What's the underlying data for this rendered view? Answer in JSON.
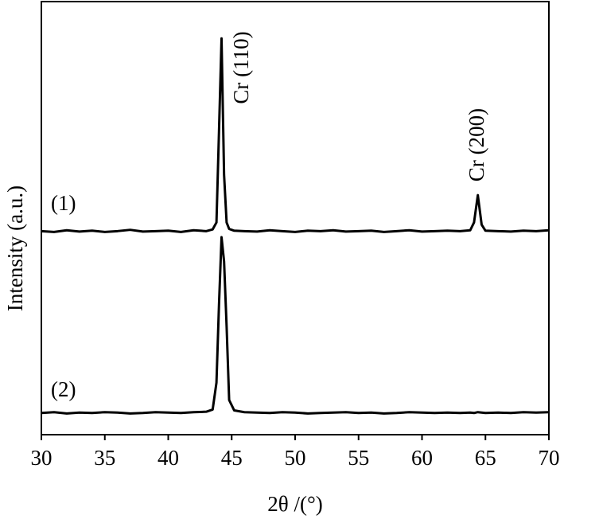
{
  "chart_data": {
    "type": "line",
    "xlabel": "2θ /(°)",
    "ylabel": "Intensity (a.u.)",
    "annotations": [
      "Cr (110)",
      "Cr (200)"
    ],
    "x": [
      30,
      31,
      32,
      33,
      34,
      35,
      36,
      37,
      38,
      39,
      40,
      41,
      42,
      43,
      43.5,
      43.8,
      44.0,
      44.2,
      44.4,
      44.6,
      44.8,
      45.2,
      46,
      47,
      48,
      49,
      50,
      51,
      52,
      53,
      54,
      55,
      56,
      57,
      58,
      59,
      60,
      61,
      62,
      63,
      63.8,
      64.1,
      64.4,
      64.7,
      65,
      66,
      67,
      68,
      69,
      70
    ],
    "series": [
      {
        "name": "(1)",
        "color": "#000000",
        "values": [
          47.0,
          46.8,
          47.2,
          46.9,
          47.1,
          46.8,
          47.0,
          47.3,
          46.9,
          47.0,
          47.1,
          46.8,
          47.2,
          47.0,
          47.4,
          49,
          70,
          91.5,
          60,
          49,
          47.5,
          47.1,
          47.0,
          46.9,
          47.2,
          47.0,
          46.8,
          47.1,
          47.0,
          47.2,
          46.9,
          47.0,
          47.1,
          46.8,
          47.0,
          47.2,
          46.9,
          47.0,
          47.1,
          47.0,
          47.2,
          49,
          55.3,
          48.5,
          47.1,
          47.0,
          46.9,
          47.1,
          47.0,
          47.2
        ]
      },
      {
        "name": "(2)",
        "color": "#000000",
        "values": [
          5.0,
          5.2,
          4.9,
          5.1,
          5.0,
          5.2,
          5.1,
          4.9,
          5.0,
          5.2,
          5.1,
          5.0,
          5.2,
          5.3,
          5.8,
          12,
          30,
          45.6,
          40,
          25,
          8,
          5.6,
          5.2,
          5.1,
          5.0,
          5.2,
          5.1,
          4.9,
          5.0,
          5.1,
          5.2,
          5.0,
          5.1,
          4.9,
          5.0,
          5.2,
          5.1,
          5.0,
          5.1,
          5.0,
          5.1,
          5.0,
          5.2,
          5.1,
          5.0,
          5.1,
          5.0,
          5.2,
          5.1,
          5.2
        ]
      }
    ],
    "xlim": [
      30,
      70
    ],
    "xticks": [
      30,
      35,
      40,
      45,
      50,
      55,
      60,
      65,
      70
    ],
    "ylim": [
      0,
      100
    ],
    "grid": false
  }
}
